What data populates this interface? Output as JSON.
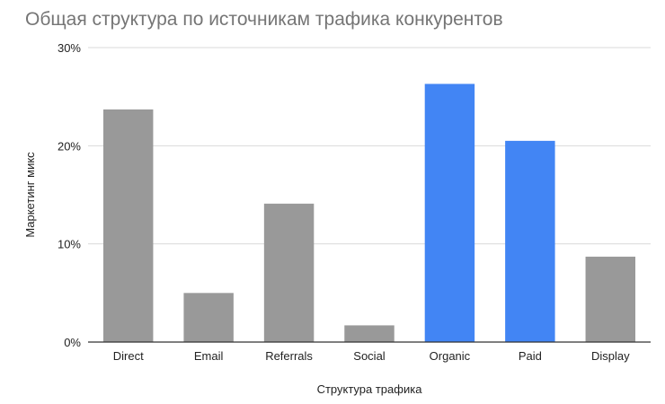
{
  "chart_data": {
    "type": "bar",
    "title": "Общая структура по источникам трафика конкурентов",
    "xlabel": "Структура трафика",
    "ylabel": "Маркетинг микс",
    "categories": [
      "Direct",
      "Email",
      "Referrals",
      "Social",
      "Organic",
      "Paid",
      "Display"
    ],
    "values": [
      23.7,
      5.0,
      14.1,
      1.7,
      26.3,
      20.5,
      8.7
    ],
    "ylim": [
      0,
      30
    ],
    "yticks": [
      0,
      10,
      20,
      30
    ],
    "ytick_labels": [
      "0%",
      "10%",
      "20%",
      "30%"
    ],
    "grid": true,
    "bar_colors": [
      "#999999",
      "#999999",
      "#999999",
      "#999999",
      "#4285f4",
      "#4285f4",
      "#999999"
    ]
  }
}
